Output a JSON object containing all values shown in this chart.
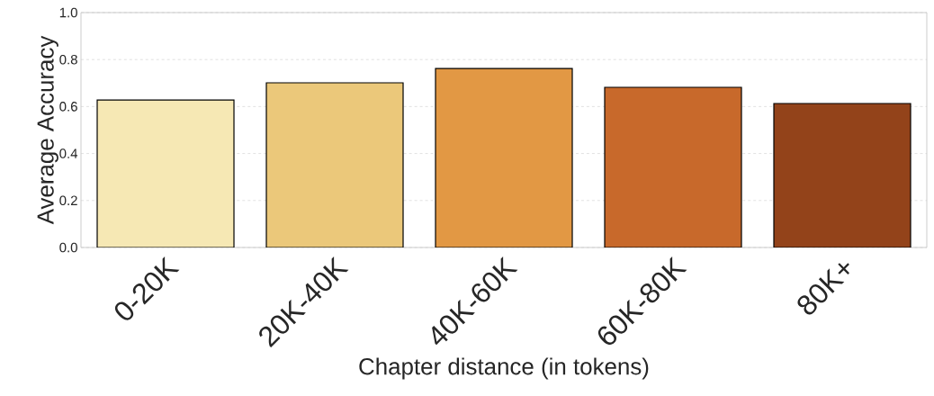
{
  "chart_data": {
    "type": "bar",
    "xlabel": "Chapter distance (in tokens)",
    "ylabel": "Average Accuracy",
    "categories": [
      "0-20K",
      "20K-40K",
      "40K-60K",
      "60K-80K",
      "80K+"
    ],
    "values": [
      0.628,
      0.701,
      0.762,
      0.682,
      0.613
    ],
    "colors": [
      "#f6e8b4",
      "#ebc87a",
      "#e29844",
      "#c8692b",
      "#93431a"
    ],
    "ylim": [
      0,
      1
    ],
    "yticks": [
      {
        "value": 0,
        "label": "0.0"
      },
      0.2,
      0.4,
      0.6,
      0.8,
      {
        "value": 1,
        "label": "1.0"
      }
    ],
    "grid": "y"
  }
}
